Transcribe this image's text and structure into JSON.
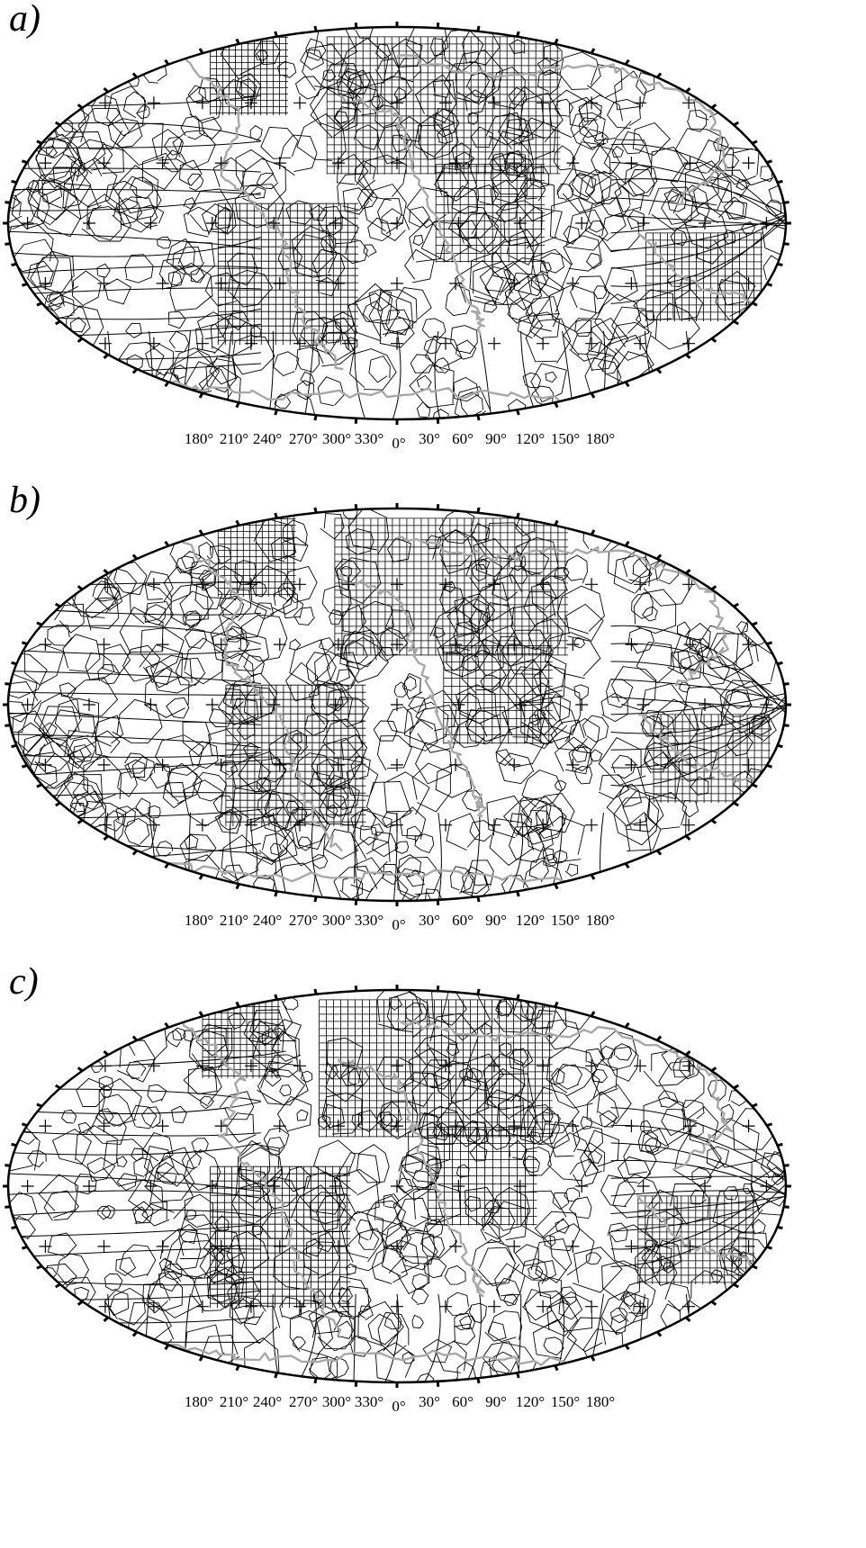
{
  "figure": {
    "panels": [
      {
        "label": "a)"
      },
      {
        "label": "b)"
      },
      {
        "label": "c)"
      }
    ],
    "longitude_ticks": [
      "180°",
      "210°",
      "240°",
      "270°",
      "300°",
      "330°",
      "0°",
      "30°",
      "60°",
      "90°",
      "120°",
      "150°",
      "180°"
    ],
    "colors": {
      "cell_edges": "#000000",
      "coastlines": "#a8a8a8",
      "background": "#ffffff"
    },
    "projection": "Robinson-like world map with Voronoi cell tessellation"
  }
}
